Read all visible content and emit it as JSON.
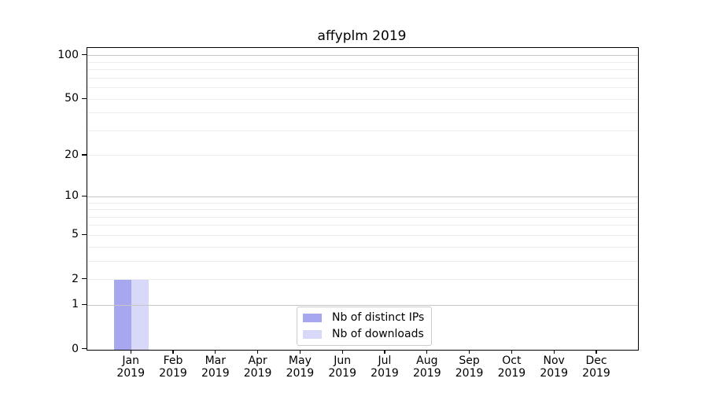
{
  "chart_data": {
    "type": "bar",
    "title": "affyplm 2019",
    "xlabel": "",
    "ylabel": "",
    "yscale": "log1p",
    "ylim": [
      0,
      113
    ],
    "y_ticks": [
      0,
      1,
      2,
      5,
      10,
      20,
      50,
      100
    ],
    "categories": [
      "Jan",
      "Feb",
      "Mar",
      "Apr",
      "May",
      "Jun",
      "Jul",
      "Aug",
      "Sep",
      "Oct",
      "Nov",
      "Dec"
    ],
    "category_year": "2019",
    "series": [
      {
        "name": "Nb of distinct IPs",
        "color": "#a7a7f0",
        "values": [
          2,
          0,
          0,
          0,
          0,
          0,
          0,
          0,
          0,
          0,
          0,
          0
        ]
      },
      {
        "name": "Nb of downloads",
        "color": "#d8d8f9",
        "values": [
          2,
          0,
          0,
          0,
          0,
          0,
          0,
          0,
          0,
          0,
          0,
          0
        ]
      }
    ],
    "gridlines": {
      "major": [
        1,
        10,
        100
      ],
      "minor": [
        2,
        3,
        4,
        5,
        6,
        7,
        8,
        9,
        20,
        30,
        40,
        50,
        60,
        70,
        80,
        90
      ],
      "major_color": "#c6c6c6",
      "minor_color": "#eeeeee"
    },
    "legend": {
      "position": "bottom-center",
      "entries": [
        "Nb of distinct IPs",
        "Nb of downloads"
      ]
    },
    "colors": {
      "spine": "#000000",
      "text": "#000000",
      "background": "#ffffff",
      "legend_border": "#cccccc"
    }
  }
}
